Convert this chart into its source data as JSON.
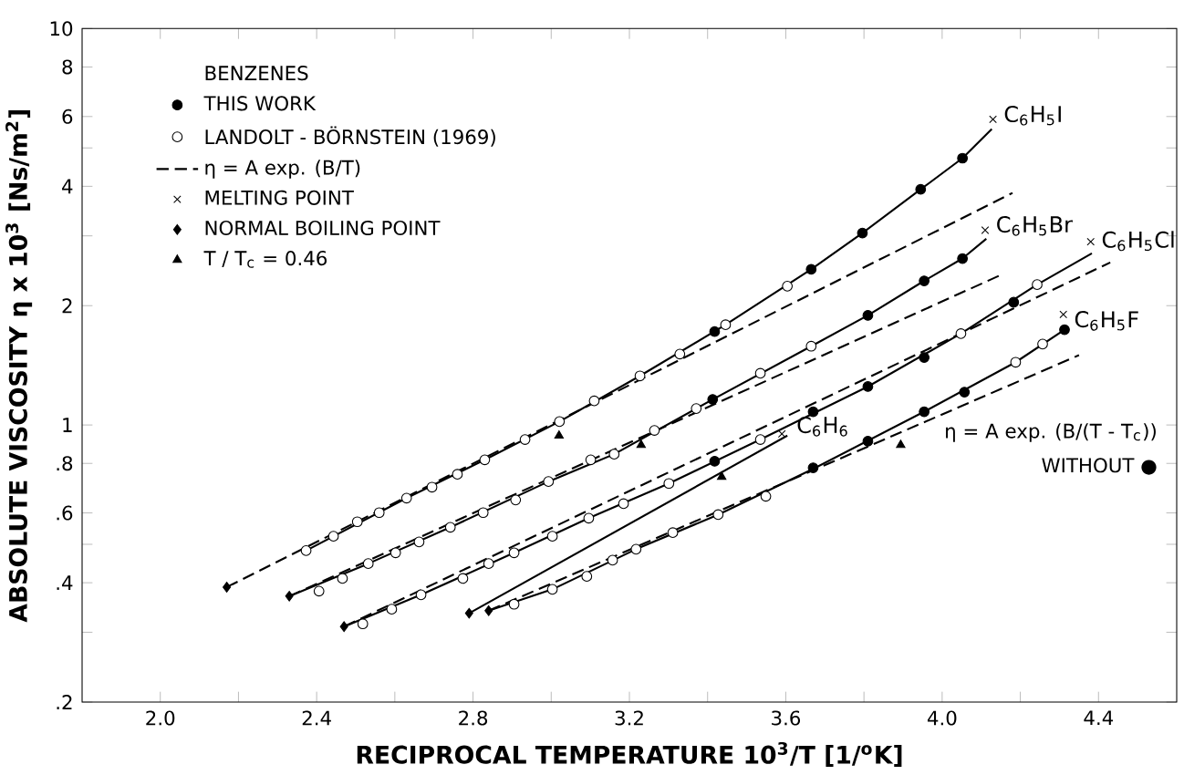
{
  "chart_data": {
    "type": "scatter",
    "xlabel": "RECIPROCAL TEMPERATURE   10$^{3}$/T   [1/$^{o}$K]",
    "ylabel": "ABSOLUTE VISCOSITY   η x 10$^{3}$  [Ns/m$^{2}$]",
    "legend_title": "BENZENES",
    "legend": "top left",
    "log": "y",
    "grid": false,
    "xlim": [
      1.8,
      4.6
    ],
    "ylim": [
      0.2,
      10
    ],
    "xticks": [
      {
        "value": 2.0,
        "label": "2.0"
      },
      {
        "value": 2.2,
        "label": null
      },
      2.4,
      {
        "value": 2.6,
        "label": null
      },
      2.8,
      {
        "value": 3.0,
        "label": null
      },
      3.2,
      {
        "value": 3.4,
        "label": null
      },
      3.6,
      {
        "value": 3.8,
        "label": null
      },
      {
        "value": 4.0,
        "label": "4.0"
      },
      {
        "value": 4.2,
        "label": null
      },
      4.4
    ],
    "yticks": [
      {
        "value": 0.2,
        "label": ".2"
      },
      {
        "value": 0.3,
        "label": null
      },
      {
        "value": 0.4,
        "label": ".4"
      },
      {
        "value": 0.5,
        "label": null
      },
      {
        "value": 0.6,
        "label": ".6"
      },
      {
        "value": 0.8,
        "label": ".8"
      },
      1,
      2,
      {
        "value": 3,
        "label": null
      },
      4,
      {
        "value": 5,
        "label": null
      },
      6,
      8,
      10
    ],
    "series": [
      {
        "name": "THIS WORK",
        "color": "#000000",
        "marker": "circle",
        "x": [
          3.418,
          3.665,
          3.796,
          3.945,
          4.052,
          3.413,
          3.81,
          3.954,
          4.052,
          3.418,
          3.67,
          3.81,
          3.954,
          4.183,
          3.67,
          3.81,
          3.954,
          4.057,
          4.313
        ],
        "values": [
          1.72,
          2.47,
          3.05,
          3.93,
          4.71,
          1.16,
          1.89,
          2.31,
          2.63,
          0.81,
          1.08,
          1.25,
          1.48,
          2.04,
          0.78,
          0.91,
          1.08,
          1.21,
          1.74
        ]
      },
      {
        "name": "LANDOLT - BÖRNSTEIN (1969)",
        "color": "#ffffff",
        "marker": "circle",
        "x": [
          2.373,
          2.443,
          2.504,
          2.56,
          2.63,
          2.695,
          2.76,
          2.83,
          2.933,
          3.021,
          3.11,
          3.227,
          3.329,
          3.446,
          3.604,
          2.406,
          2.466,
          2.532,
          2.602,
          2.662,
          2.742,
          2.826,
          2.909,
          2.993,
          3.101,
          3.161,
          3.264,
          3.371,
          3.535,
          3.665,
          2.518,
          2.592,
          2.667,
          2.774,
          2.84,
          2.905,
          3.003,
          3.096,
          3.185,
          3.301,
          3.535,
          4.048,
          4.243,
          2.905,
          3.003,
          3.091,
          3.157,
          3.217,
          3.311,
          3.427,
          3.549,
          4.188,
          4.257
        ],
        "values": [
          0.482,
          0.524,
          0.57,
          0.601,
          0.654,
          0.697,
          0.751,
          0.817,
          0.919,
          1.02,
          1.15,
          1.33,
          1.51,
          1.79,
          2.24,
          0.381,
          0.41,
          0.447,
          0.476,
          0.507,
          0.552,
          0.601,
          0.647,
          0.72,
          0.817,
          0.844,
          0.969,
          1.1,
          1.35,
          1.58,
          0.315,
          0.343,
          0.373,
          0.41,
          0.447,
          0.476,
          0.524,
          0.582,
          0.633,
          0.712,
          0.919,
          1.7,
          2.26,
          0.353,
          0.385,
          0.415,
          0.456,
          0.486,
          0.535,
          0.594,
          0.661,
          1.44,
          1.6
        ]
      },
      {
        "type": "line",
        "name": "η = A exp. (B/T)",
        "color": "#000000",
        "marker": "none",
        "line_style": "dashed",
        "x": [
          2.17,
          4.18
        ],
        "values": [
          0.39,
          3.85
        ]
      },
      {
        "type": "line",
        "color": "#000000",
        "marker": "none",
        "line_style": "dashed",
        "x": [
          2.33,
          4.15
        ],
        "values": [
          0.37,
          2.39
        ]
      },
      {
        "type": "line",
        "color": "#000000",
        "marker": "none",
        "line_style": "dashed",
        "x": [
          2.47,
          4.43
        ],
        "values": [
          0.31,
          2.57
        ]
      },
      {
        "type": "line",
        "color": "#000000",
        "marker": "none",
        "line_style": "dashed",
        "x": [
          2.84,
          4.35
        ],
        "values": [
          0.34,
          1.5
        ]
      },
      {
        "type": "line",
        "color": "#000000",
        "marker": "none",
        "line_style": "solid",
        "x": [
          2.373,
          2.63,
          2.83,
          3.021,
          3.227,
          3.446,
          3.665,
          3.796,
          3.945,
          4.052,
          4.127
        ],
        "values": [
          0.482,
          0.654,
          0.817,
          1.02,
          1.33,
          1.79,
          2.47,
          3.05,
          3.93,
          4.71,
          5.58
        ]
      },
      {
        "type": "line",
        "color": "#000000",
        "marker": "none",
        "line_style": "solid",
        "x": [
          2.331,
          2.532,
          2.742,
          2.993,
          3.161,
          3.413,
          3.665,
          3.81,
          3.954,
          4.052,
          4.113
        ],
        "values": [
          0.37,
          0.447,
          0.552,
          0.72,
          0.844,
          1.16,
          1.58,
          1.89,
          2.31,
          2.63,
          2.95
        ]
      },
      {
        "type": "line",
        "color": "#000000",
        "marker": "none",
        "line_style": "solid",
        "x": [
          2.47,
          2.667,
          2.905,
          3.096,
          3.301,
          3.535,
          3.81,
          4.048,
          4.243,
          4.383
        ],
        "values": [
          0.31,
          0.373,
          0.476,
          0.582,
          0.712,
          0.919,
          1.25,
          1.7,
          2.26,
          2.71
        ]
      },
      {
        "type": "line",
        "color": "#000000",
        "marker": "none",
        "line_style": "solid",
        "x": [
          2.84,
          3.003,
          3.217,
          3.427,
          3.67,
          3.954,
          4.188,
          4.313
        ],
        "values": [
          0.34,
          0.385,
          0.486,
          0.594,
          0.775,
          1.08,
          1.44,
          1.74
        ]
      },
      {
        "type": "line",
        "color": "#000000",
        "marker": "none",
        "line_style": "solid",
        "x": [
          2.79,
          3.604
        ],
        "values": [
          0.335,
          0.94
        ]
      },
      {
        "name": "MELTING POINT",
        "color": "#000000",
        "marker": "cross",
        "x": [
          4.13,
          4.11,
          4.38,
          4.31,
          3.59
        ],
        "values": [
          5.9,
          3.1,
          2.9,
          1.9,
          0.95
        ]
      },
      {
        "name": "NORMAL BOILING POINT",
        "color": "#000000",
        "marker": "diamond",
        "x": [
          2.17,
          2.33,
          2.47,
          2.79,
          2.84
        ],
        "values": [
          0.39,
          0.37,
          0.31,
          0.335,
          0.34
        ]
      },
      {
        "name": "T / T$_{c}$ = 0.46",
        "color": "#000000",
        "marker": "triangle",
        "x": [
          3.02,
          3.23,
          3.436,
          3.894
        ],
        "values": [
          0.94,
          0.89,
          0.74,
          0.89
        ]
      }
    ],
    "annotations": [
      {
        "text": "C$_{6}$H$_{5}$I",
        "x": 4.15,
        "y": 5.6
      },
      {
        "text": "C$_{6}$H$_{5}$Br",
        "x": 4.13,
        "y": 2.95
      },
      {
        "text": "C$_{6}$H$_{5}$Cl",
        "x": 4.4,
        "y": 2.7
      },
      {
        "text": "C$_{6}$H$_{5}$F",
        "x": 4.33,
        "y": 1.7
      },
      {
        "text": "C$_{6}$H$_{6}$",
        "x": 3.62,
        "y": 0.92
      },
      "η = A exp. (B/(T - T$_{c}$))",
      "WITHOUT ●"
    ]
  }
}
